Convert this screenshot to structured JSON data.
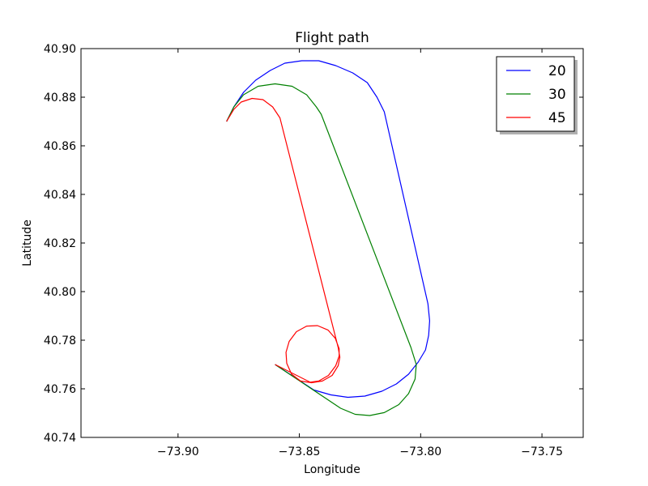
{
  "chart_data": {
    "type": "line",
    "title": "Flight path",
    "xlabel": "Longitude",
    "ylabel": "Latitude",
    "xlim": [
      -73.94,
      -73.733
    ],
    "ylim": [
      40.74,
      40.9
    ],
    "xticks": [
      -73.9,
      -73.85,
      -73.8,
      -73.75
    ],
    "xtick_labels": [
      "−73.90",
      "−73.85",
      "−73.80",
      "−73.75"
    ],
    "yticks": [
      40.74,
      40.76,
      40.78,
      40.8,
      40.82,
      40.84,
      40.86,
      40.88,
      40.9
    ],
    "ytick_labels": [
      "40.74",
      "40.76",
      "40.78",
      "40.80",
      "40.82",
      "40.84",
      "40.86",
      "40.88",
      "40.90"
    ],
    "grid": false,
    "legend_position": "top-right",
    "series": [
      {
        "name": "20",
        "color": "#0000ff",
        "points": [
          [
            -73.88,
            40.87
          ],
          [
            -73.877,
            40.876
          ],
          [
            -73.873,
            40.882
          ],
          [
            -73.868,
            40.887
          ],
          [
            -73.862,
            40.891
          ],
          [
            -73.856,
            40.894
          ],
          [
            -73.849,
            40.895
          ],
          [
            -73.842,
            40.895
          ],
          [
            -73.835,
            40.893
          ],
          [
            -73.828,
            40.89
          ],
          [
            -73.822,
            40.886
          ],
          [
            -73.818,
            40.88
          ],
          [
            -73.815,
            40.874
          ],
          [
            -73.797,
            40.795
          ],
          [
            -73.7963,
            40.788
          ],
          [
            -73.7967,
            40.782
          ],
          [
            -73.798,
            40.776
          ],
          [
            -73.801,
            40.771
          ],
          [
            -73.805,
            40.766
          ],
          [
            -73.81,
            40.762
          ],
          [
            -73.816,
            40.759
          ],
          [
            -73.823,
            40.757
          ],
          [
            -73.83,
            40.7565
          ],
          [
            -73.837,
            40.7575
          ],
          [
            -73.844,
            40.7595
          ],
          [
            -73.86,
            40.77
          ]
        ]
      },
      {
        "name": "30",
        "color": "#008000",
        "points": [
          [
            -73.88,
            40.87
          ],
          [
            -73.877,
            40.876
          ],
          [
            -73.873,
            40.881
          ],
          [
            -73.867,
            40.8845
          ],
          [
            -73.86,
            40.8855
          ],
          [
            -73.853,
            40.8845
          ],
          [
            -73.847,
            40.881
          ],
          [
            -73.843,
            40.876
          ],
          [
            -73.841,
            40.873
          ],
          [
            -73.804,
            40.777
          ],
          [
            -73.8018,
            40.77
          ],
          [
            -73.8023,
            40.764
          ],
          [
            -73.805,
            40.758
          ],
          [
            -73.809,
            40.7535
          ],
          [
            -73.815,
            40.7502
          ],
          [
            -73.821,
            40.749
          ],
          [
            -73.827,
            40.7495
          ],
          [
            -73.833,
            40.752
          ],
          [
            -73.86,
            40.77
          ]
        ]
      },
      {
        "name": "45",
        "color": "#ff0000",
        "points": [
          [
            -73.88,
            40.87
          ],
          [
            -73.877,
            40.875
          ],
          [
            -73.874,
            40.878
          ],
          [
            -73.8695,
            40.8795
          ],
          [
            -73.865,
            40.879
          ],
          [
            -73.861,
            40.876
          ],
          [
            -73.858,
            40.8715
          ],
          [
            -73.834,
            40.777
          ],
          [
            -73.8333,
            40.773
          ],
          [
            -73.834,
            40.7695
          ],
          [
            -73.8365,
            40.7655
          ],
          [
            -73.8405,
            40.7632
          ],
          [
            -73.845,
            40.7625
          ],
          [
            -73.8495,
            40.7632
          ],
          [
            -73.8532,
            40.766
          ],
          [
            -73.8552,
            40.7705
          ],
          [
            -73.8555,
            40.775
          ],
          [
            -73.8542,
            40.7795
          ],
          [
            -73.8512,
            40.7835
          ],
          [
            -73.847,
            40.7858
          ],
          [
            -73.8425,
            40.786
          ],
          [
            -73.8382,
            40.7842
          ],
          [
            -73.8352,
            40.7808
          ],
          [
            -73.8336,
            40.7765
          ],
          [
            -73.8336,
            40.7735
          ],
          [
            -73.835,
            40.7695
          ],
          [
            -73.838,
            40.7655
          ],
          [
            -73.842,
            40.7632
          ],
          [
            -73.8455,
            40.7627
          ],
          [
            -73.86,
            40.77
          ]
        ]
      }
    ]
  }
}
